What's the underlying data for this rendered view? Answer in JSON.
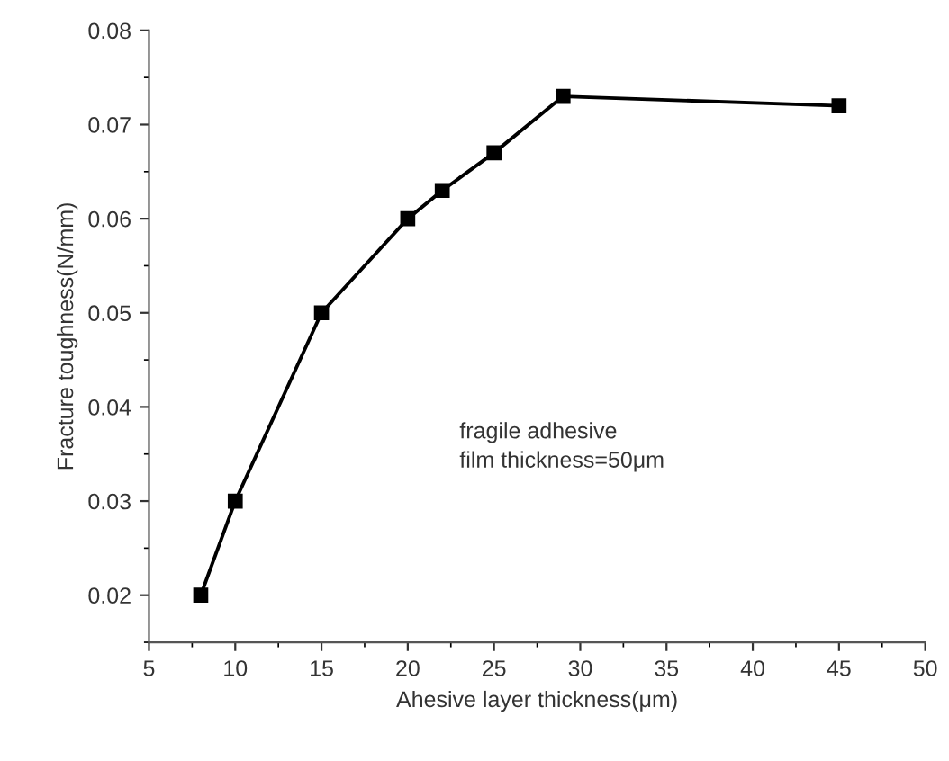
{
  "chart_data": {
    "type": "line",
    "xlabel": "Ahesive layer thickness(μm)",
    "ylabel": "Fracture toughness(N/mm)",
    "x": [
      8,
      10,
      15,
      20,
      22,
      25,
      29,
      45
    ],
    "series": [
      {
        "color": "#000000",
        "values": [
          0.02,
          0.03,
          0.05,
          0.06,
          0.063,
          0.067,
          0.073,
          0.072
        ]
      }
    ],
    "marker": "square",
    "line_style": "solid",
    "xlim": [
      5,
      50
    ],
    "xticks": [
      5,
      10,
      15,
      20,
      25,
      30,
      35,
      40,
      45,
      50
    ],
    "ylim": [
      0.015,
      0.08
    ],
    "yticks": [
      {
        "value": 0.02,
        "label": "0.02"
      },
      {
        "value": 0.03,
        "label": "0.03"
      },
      {
        "value": 0.04,
        "label": "0.04"
      },
      {
        "value": 0.05,
        "label": "0.05"
      },
      {
        "value": 0.06,
        "label": "0.06"
      },
      {
        "value": 0.07,
        "label": "0.07"
      },
      {
        "value": 0.08,
        "label": "0.08"
      }
    ],
    "annotations": [
      "fragile adhesive\nfilm thickness=50μm"
    ]
  }
}
